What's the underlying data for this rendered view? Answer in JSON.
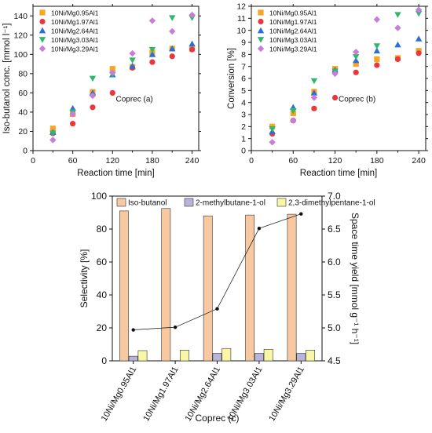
{
  "chart_data": [
    {
      "type": "scatter",
      "title": "",
      "annotation": "Coprec (a)",
      "xlabel": "Reaction time [min]",
      "ylabel": "Iso-butanol conc. [mmol l⁻¹]",
      "xlim": [
        0,
        250
      ],
      "ylim": [
        0,
        150
      ],
      "xticks": [
        0,
        60,
        120,
        180,
        240
      ],
      "yticks": [
        0,
        20,
        40,
        60,
        80,
        100,
        120,
        140
      ],
      "legend_position": "top-left",
      "series": [
        {
          "name": "10Ni/Mg0.95Al1",
          "color": "#f5a623",
          "marker": "square",
          "points": [
            [
              30,
              23
            ],
            [
              60,
              38
            ],
            [
              90,
              61
            ],
            [
              120,
              85
            ],
            [
              150,
              87
            ],
            [
              180,
              102
            ],
            [
              210,
              106
            ],
            [
              240,
              106
            ]
          ]
        },
        {
          "name": "10Ni/Mg1.97Al1",
          "color": "#e8383d",
          "marker": "circle",
          "points": [
            [
              30,
              18
            ],
            [
              60,
              28
            ],
            [
              90,
              45
            ],
            [
              120,
              60
            ],
            [
              150,
              86
            ],
            [
              180,
              92
            ],
            [
              210,
              98
            ],
            [
              240,
              105
            ]
          ]
        },
        {
          "name": "10Ni/Mg2.64Al1",
          "color": "#2b6fd6",
          "marker": "triangle-up",
          "points": [
            [
              30,
              19
            ],
            [
              60,
              44
            ],
            [
              90,
              60
            ],
            [
              120,
              79
            ],
            [
              150,
              88
            ],
            [
              180,
              100
            ],
            [
              210,
              106
            ],
            [
              240,
              111
            ]
          ]
        },
        {
          "name": "10Ni/Mg3.03Al1",
          "color": "#2fb86a",
          "marker": "triangle-down",
          "points": [
            [
              30,
              18
            ],
            [
              60,
              40
            ],
            [
              90,
              75
            ],
            [
              120,
              79
            ],
            [
              150,
              94
            ],
            [
              180,
              105
            ],
            [
              210,
              138
            ],
            [
              240,
              138
            ]
          ]
        },
        {
          "name": "10Ni/Mg3.29Al1",
          "color": "#c77ddb",
          "marker": "diamond",
          "points": [
            [
              30,
              11
            ],
            [
              60,
              38
            ],
            [
              90,
              57
            ],
            [
              120,
              81
            ],
            [
              150,
              101
            ],
            [
              180,
              135
            ],
            [
              210,
              124
            ],
            [
              240,
              141
            ]
          ]
        }
      ]
    },
    {
      "type": "scatter",
      "title": "",
      "annotation": "Coprec (b)",
      "xlabel": "Reaction time [min]",
      "ylabel": "Conversion [%]",
      "xlim": [
        0,
        250
      ],
      "ylim": [
        0,
        12
      ],
      "xticks": [
        0,
        60,
        120,
        180,
        240
      ],
      "yticks": [
        0,
        1,
        2,
        3,
        4,
        5,
        6,
        7,
        8,
        9,
        10,
        11,
        12
      ],
      "legend_position": "top-left",
      "series": [
        {
          "name": "10Ni/Mg0.95Al1",
          "color": "#f5a623",
          "marker": "square",
          "points": [
            [
              30,
              2.0
            ],
            [
              60,
              3.1
            ],
            [
              90,
              4.9
            ],
            [
              120,
              6.8
            ],
            [
              150,
              7.2
            ],
            [
              180,
              7.6
            ],
            [
              210,
              7.7
            ],
            [
              240,
              8.3
            ]
          ]
        },
        {
          "name": "10Ni/Mg1.97Al1",
          "color": "#e8383d",
          "marker": "circle",
          "points": [
            [
              30,
              1.4
            ],
            [
              60,
              2.5
            ],
            [
              90,
              3.5
            ],
            [
              120,
              4.4
            ],
            [
              150,
              6.5
            ],
            [
              180,
              7.1
            ],
            [
              210,
              7.6
            ],
            [
              240,
              8.1
            ]
          ]
        },
        {
          "name": "10Ni/Mg2.64Al1",
          "color": "#2b6fd6",
          "marker": "triangle-up",
          "points": [
            [
              30,
              1.6
            ],
            [
              60,
              3.6
            ],
            [
              90,
              4.8
            ],
            [
              120,
              6.7
            ],
            [
              150,
              7.5
            ],
            [
              180,
              8.3
            ],
            [
              210,
              8.8
            ],
            [
              240,
              9.3
            ]
          ]
        },
        {
          "name": "10Ni/Mg3.03Al1",
          "color": "#2fb86a",
          "marker": "triangle-down",
          "points": [
            [
              30,
              1.8
            ],
            [
              60,
              3.3
            ],
            [
              90,
              5.8
            ],
            [
              120,
              6.6
            ],
            [
              150,
              7.8
            ],
            [
              180,
              8.7
            ],
            [
              210,
              11.3
            ],
            [
              240,
              11.4
            ]
          ]
        },
        {
          "name": "10Ni/Mg3.29Al1",
          "color": "#c77ddb",
          "marker": "diamond",
          "points": [
            [
              30,
              0.7
            ],
            [
              60,
              2.5
            ],
            [
              90,
              4.4
            ],
            [
              120,
              6.4
            ],
            [
              150,
              8.2
            ],
            [
              180,
              10.9
            ],
            [
              210,
              10.2
            ],
            [
              240,
              11.7
            ]
          ]
        }
      ]
    },
    {
      "type": "bar",
      "title": "",
      "xlabel": "Coprec (c)",
      "ylabel": "Selectivity [%]",
      "y2label": "Space time yield [mmol g⁻¹ h⁻¹]",
      "ylim": [
        0,
        100
      ],
      "yticks": [
        0,
        20,
        40,
        60,
        80,
        100
      ],
      "y2lim": [
        4.5,
        7.0
      ],
      "y2ticks": [
        4.5,
        5.0,
        5.5,
        6.0,
        6.5,
        7.0
      ],
      "legend_position": "top",
      "categories": [
        "10Ni/Mg0.95Al1",
        "10Ni/Mg1.97Al1",
        "10Ni/Mg2.64Al1",
        "10Ni/Mg3.03Al1",
        "10Ni/Mg3.29Al1"
      ],
      "series": [
        {
          "name": "Iso-butanol",
          "color": "#f8c9a1",
          "values": [
            91.0,
            92.5,
            88.0,
            88.5,
            89.0
          ]
        },
        {
          "name": "2-methylbutane-1-ol",
          "color": "#b9b4da",
          "values": [
            2.8,
            0.0,
            4.5,
            4.5,
            4.5
          ]
        },
        {
          "name": "2,3-dimethylpentane-1-ol",
          "color": "#f9f7a6",
          "values": [
            6.2,
            6.5,
            7.5,
            7.0,
            6.5
          ]
        }
      ],
      "line_series": {
        "axis": "right",
        "color": "#111111",
        "values": [
          4.97,
          5.01,
          5.29,
          6.51,
          6.73
        ]
      }
    }
  ]
}
